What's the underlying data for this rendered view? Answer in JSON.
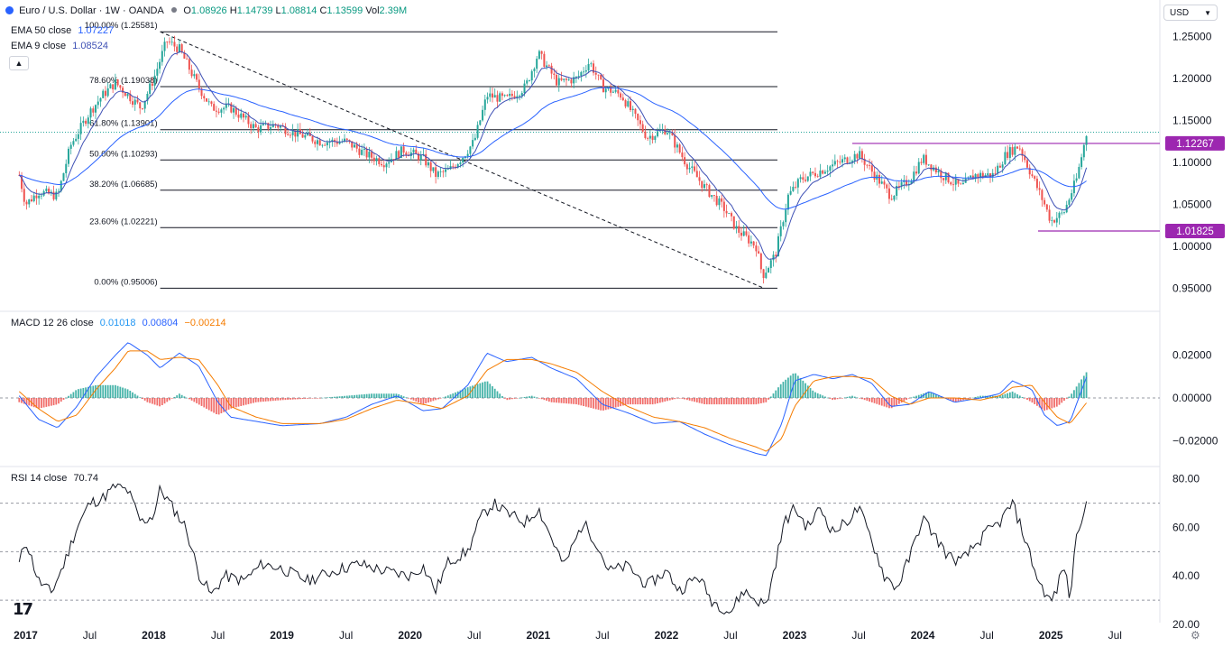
{
  "header": {
    "title": "Euro / U.S. Dollar · 1W · OANDA",
    "ohlc": [
      {
        "label": "O",
        "value": "1.08926"
      },
      {
        "label": "H",
        "value": "1.14739"
      },
      {
        "label": "L",
        "value": "1.08814"
      },
      {
        "label": "C",
        "value": "1.13599"
      }
    ],
    "vol_label": "Vol",
    "vol_value": "2.39M",
    "ema50_label": "EMA 50 close",
    "ema50_value": "1.07227",
    "ema9_label": "EMA 9 close",
    "ema9_value": "1.08524",
    "currency": "USD",
    "collapse_icon": "chevron-up-icon"
  },
  "colors": {
    "up": "#26a69a",
    "down": "#ef5350",
    "ema9": "#3f51b5",
    "ema50": "#2962ff",
    "macd": "#2962ff",
    "signal": "#f57c00",
    "rsi": "#131722",
    "level": "#9c27b0",
    "grid": "#9598a1"
  },
  "chart_data": [
    {
      "type": "candlestick",
      "title": "Euro / U.S. Dollar · 1W · OANDA",
      "x_ticks": [
        "2017",
        "Jul",
        "2018",
        "Jul",
        "2019",
        "Jul",
        "2020",
        "Jul",
        "2021",
        "Jul",
        "2022",
        "Jul",
        "2023",
        "Jul",
        "2024",
        "Jul",
        "2025",
        "Jul"
      ],
      "y_ticks": [
        "1.25000",
        "1.20000",
        "1.15000",
        "1.10000",
        "1.05000",
        "1.00000",
        "0.95000"
      ],
      "ylim": [
        0.93,
        1.27
      ],
      "price_path": [
        [
          2016.95,
          1.085
        ],
        [
          2017.0,
          1.05
        ],
        [
          2017.1,
          1.065
        ],
        [
          2017.25,
          1.06
        ],
        [
          2017.35,
          1.12
        ],
        [
          2017.5,
          1.16
        ],
        [
          2017.6,
          1.18
        ],
        [
          2017.7,
          1.195
        ],
        [
          2017.8,
          1.18
        ],
        [
          2017.9,
          1.165
        ],
        [
          2018.0,
          1.2
        ],
        [
          2018.1,
          1.245
        ],
        [
          2018.2,
          1.235
        ],
        [
          2018.35,
          1.19
        ],
        [
          2018.45,
          1.165
        ],
        [
          2018.6,
          1.165
        ],
        [
          2018.8,
          1.14
        ],
        [
          2018.95,
          1.145
        ],
        [
          2019.1,
          1.135
        ],
        [
          2019.3,
          1.125
        ],
        [
          2019.5,
          1.125
        ],
        [
          2019.65,
          1.11
        ],
        [
          2019.8,
          1.1
        ],
        [
          2019.95,
          1.115
        ],
        [
          2020.1,
          1.105
        ],
        [
          2020.2,
          1.085
        ],
        [
          2020.3,
          1.09
        ],
        [
          2020.4,
          1.105
        ],
        [
          2020.5,
          1.125
        ],
        [
          2020.6,
          1.18
        ],
        [
          2020.75,
          1.175
        ],
        [
          2020.9,
          1.19
        ],
        [
          2021.0,
          1.23
        ],
        [
          2021.15,
          1.195
        ],
        [
          2021.3,
          1.2
        ],
        [
          2021.4,
          1.22
        ],
        [
          2021.5,
          1.19
        ],
        [
          2021.65,
          1.18
        ],
        [
          2021.85,
          1.13
        ],
        [
          2022.0,
          1.14
        ],
        [
          2022.15,
          1.1
        ],
        [
          2022.3,
          1.07
        ],
        [
          2022.45,
          1.045
        ],
        [
          2022.55,
          1.02
        ],
        [
          2022.7,
          1.0
        ],
        [
          2022.75,
          0.965
        ],
        [
          2022.85,
          0.99
        ],
        [
          2022.95,
          1.06
        ],
        [
          2023.05,
          1.08
        ],
        [
          2023.2,
          1.09
        ],
        [
          2023.35,
          1.1
        ],
        [
          2023.5,
          1.11
        ],
        [
          2023.6,
          1.09
        ],
        [
          2023.75,
          1.06
        ],
        [
          2023.9,
          1.08
        ],
        [
          2024.0,
          1.105
        ],
        [
          2024.15,
          1.085
        ],
        [
          2024.3,
          1.07
        ],
        [
          2024.4,
          1.085
        ],
        [
          2024.55,
          1.085
        ],
        [
          2024.65,
          1.11
        ],
        [
          2024.75,
          1.12
        ],
        [
          2024.85,
          1.085
        ],
        [
          2024.95,
          1.05
        ],
        [
          2025.0,
          1.03
        ],
        [
          2025.1,
          1.04
        ],
        [
          2025.2,
          1.08
        ],
        [
          2025.28,
          1.136
        ]
      ],
      "fib_levels": [
        {
          "label": "100.00% (1.25581)",
          "value": 1.25581
        },
        {
          "label": "78.60% (1.19038)",
          "value": 1.19038
        },
        {
          "label": "61.80% (1.13901)",
          "value": 1.13901
        },
        {
          "label": "50.00% (1.10293)",
          "value": 1.10293
        },
        {
          "label": "38.20% (1.06685)",
          "value": 1.06685
        },
        {
          "label": "23.60% (1.02221)",
          "value": 1.02221
        },
        {
          "label": "0.00% (0.95006)",
          "value": 0.95006
        }
      ],
      "horizontal_levels": [
        {
          "label": "1.12267",
          "value": 1.12267
        },
        {
          "label": "1.01825",
          "value": 1.01825
        }
      ],
      "trendline": [
        [
          2018.05,
          1.2558
        ],
        [
          2022.76,
          0.9501
        ]
      ]
    },
    {
      "type": "line",
      "title": "MACD 12 26 close",
      "values_label": [
        "0.01018",
        "0.00804",
        "−0.00214"
      ],
      "y_ticks": [
        "0.02000",
        "0.00000",
        "−0.02000"
      ],
      "ylim": [
        -0.03,
        0.03
      ],
      "macd_path": [
        [
          2016.95,
          0.001
        ],
        [
          2017.1,
          -0.01
        ],
        [
          2017.25,
          -0.014
        ],
        [
          2017.4,
          -0.004
        ],
        [
          2017.55,
          0.01
        ],
        [
          2017.7,
          0.02
        ],
        [
          2017.8,
          0.026
        ],
        [
          2017.95,
          0.02
        ],
        [
          2018.05,
          0.014
        ],
        [
          2018.2,
          0.021
        ],
        [
          2018.35,
          0.015
        ],
        [
          2018.5,
          -0.002
        ],
        [
          2018.6,
          -0.009
        ],
        [
          2018.8,
          -0.011
        ],
        [
          2019.0,
          -0.013
        ],
        [
          2019.3,
          -0.012
        ],
        [
          2019.5,
          -0.009
        ],
        [
          2019.7,
          -0.003
        ],
        [
          2019.9,
          0.001
        ],
        [
          2020.1,
          -0.006
        ],
        [
          2020.25,
          -0.005
        ],
        [
          2020.45,
          0.006
        ],
        [
          2020.6,
          0.021
        ],
        [
          2020.75,
          0.017
        ],
        [
          2020.95,
          0.019
        ],
        [
          2021.1,
          0.014
        ],
        [
          2021.3,
          0.009
        ],
        [
          2021.5,
          -0.003
        ],
        [
          2021.7,
          -0.007
        ],
        [
          2021.9,
          -0.012
        ],
        [
          2022.1,
          -0.011
        ],
        [
          2022.3,
          -0.017
        ],
        [
          2022.5,
          -0.022
        ],
        [
          2022.7,
          -0.026
        ],
        [
          2022.78,
          -0.027
        ],
        [
          2022.9,
          -0.012
        ],
        [
          2023.0,
          0.008
        ],
        [
          2023.15,
          0.011
        ],
        [
          2023.3,
          0.009
        ],
        [
          2023.45,
          0.011
        ],
        [
          2023.6,
          0.007
        ],
        [
          2023.75,
          -0.004
        ],
        [
          2023.9,
          -0.003
        ],
        [
          2024.05,
          0.003
        ],
        [
          2024.25,
          -0.002
        ],
        [
          2024.45,
          0.0
        ],
        [
          2024.6,
          0.002
        ],
        [
          2024.7,
          0.008
        ],
        [
          2024.85,
          0.004
        ],
        [
          2024.95,
          -0.008
        ],
        [
          2025.05,
          -0.013
        ],
        [
          2025.15,
          -0.011
        ],
        [
          2025.28,
          0.0102
        ]
      ],
      "signal_path": [
        [
          2016.95,
          0.003
        ],
        [
          2017.1,
          -0.005
        ],
        [
          2017.25,
          -0.011
        ],
        [
          2017.4,
          -0.008
        ],
        [
          2017.55,
          0.004
        ],
        [
          2017.7,
          0.014
        ],
        [
          2017.8,
          0.022
        ],
        [
          2017.95,
          0.022
        ],
        [
          2018.05,
          0.018
        ],
        [
          2018.2,
          0.019
        ],
        [
          2018.35,
          0.018
        ],
        [
          2018.5,
          0.006
        ],
        [
          2018.6,
          -0.004
        ],
        [
          2018.8,
          -0.009
        ],
        [
          2019.0,
          -0.012
        ],
        [
          2019.3,
          -0.012
        ],
        [
          2019.5,
          -0.01
        ],
        [
          2019.7,
          -0.005
        ],
        [
          2019.9,
          -0.001
        ],
        [
          2020.1,
          -0.003
        ],
        [
          2020.25,
          -0.005
        ],
        [
          2020.45,
          0.001
        ],
        [
          2020.6,
          0.013
        ],
        [
          2020.75,
          0.018
        ],
        [
          2020.95,
          0.018
        ],
        [
          2021.1,
          0.016
        ],
        [
          2021.3,
          0.012
        ],
        [
          2021.5,
          0.003
        ],
        [
          2021.7,
          -0.004
        ],
        [
          2021.9,
          -0.009
        ],
        [
          2022.1,
          -0.011
        ],
        [
          2022.3,
          -0.014
        ],
        [
          2022.5,
          -0.019
        ],
        [
          2022.7,
          -0.023
        ],
        [
          2022.78,
          -0.025
        ],
        [
          2022.9,
          -0.019
        ],
        [
          2023.0,
          -0.004
        ],
        [
          2023.15,
          0.008
        ],
        [
          2023.3,
          0.01
        ],
        [
          2023.45,
          0.01
        ],
        [
          2023.6,
          0.009
        ],
        [
          2023.75,
          0.001
        ],
        [
          2023.9,
          -0.003
        ],
        [
          2024.05,
          0.0
        ],
        [
          2024.25,
          0.0
        ],
        [
          2024.45,
          -0.001
        ],
        [
          2024.6,
          0.001
        ],
        [
          2024.7,
          0.005
        ],
        [
          2024.85,
          0.006
        ],
        [
          2024.95,
          -0.002
        ],
        [
          2025.05,
          -0.009
        ],
        [
          2025.15,
          -0.012
        ],
        [
          2025.28,
          -0.0021
        ]
      ]
    },
    {
      "type": "line",
      "title": "RSI 14 close",
      "values_label": [
        "70.74"
      ],
      "y_ticks": [
        "80.00",
        "60.00",
        "40.00",
        "20.00"
      ],
      "ylim": [
        17,
        84
      ],
      "bands": [
        70,
        50,
        30
      ],
      "rsi_path": [
        [
          2016.95,
          45
        ],
        [
          2017.0,
          55
        ],
        [
          2017.1,
          38
        ],
        [
          2017.2,
          33
        ],
        [
          2017.3,
          45
        ],
        [
          2017.4,
          60
        ],
        [
          2017.5,
          70
        ],
        [
          2017.6,
          72
        ],
        [
          2017.7,
          77
        ],
        [
          2017.8,
          75
        ],
        [
          2017.9,
          62
        ],
        [
          2018.0,
          65
        ],
        [
          2018.05,
          76
        ],
        [
          2018.15,
          68
        ],
        [
          2018.25,
          60
        ],
        [
          2018.35,
          41
        ],
        [
          2018.45,
          32
        ],
        [
          2018.55,
          40
        ],
        [
          2018.7,
          38
        ],
        [
          2018.85,
          45
        ],
        [
          2019.0,
          43
        ],
        [
          2019.2,
          38
        ],
        [
          2019.4,
          42
        ],
        [
          2019.6,
          45
        ],
        [
          2019.8,
          42
        ],
        [
          2020.0,
          40
        ],
        [
          2020.1,
          44
        ],
        [
          2020.2,
          34
        ],
        [
          2020.3,
          46
        ],
        [
          2020.45,
          50
        ],
        [
          2020.55,
          64
        ],
        [
          2020.65,
          70
        ],
        [
          2020.75,
          66
        ],
        [
          2020.9,
          62
        ],
        [
          2021.0,
          68
        ],
        [
          2021.1,
          56
        ],
        [
          2021.2,
          44
        ],
        [
          2021.35,
          62
        ],
        [
          2021.45,
          54
        ],
        [
          2021.55,
          42
        ],
        [
          2021.7,
          44
        ],
        [
          2021.85,
          36
        ],
        [
          2022.0,
          42
        ],
        [
          2022.1,
          34
        ],
        [
          2022.25,
          40
        ],
        [
          2022.35,
          30
        ],
        [
          2022.5,
          25
        ],
        [
          2022.6,
          34
        ],
        [
          2022.7,
          30
        ],
        [
          2022.78,
          28
        ],
        [
          2022.85,
          45
        ],
        [
          2022.92,
          62
        ],
        [
          2023.0,
          68
        ],
        [
          2023.1,
          60
        ],
        [
          2023.2,
          68
        ],
        [
          2023.3,
          58
        ],
        [
          2023.4,
          62
        ],
        [
          2023.5,
          68
        ],
        [
          2023.6,
          55
        ],
        [
          2023.7,
          40
        ],
        [
          2023.8,
          35
        ],
        [
          2023.9,
          48
        ],
        [
          2024.0,
          64
        ],
        [
          2024.1,
          56
        ],
        [
          2024.2,
          48
        ],
        [
          2024.3,
          46
        ],
        [
          2024.4,
          52
        ],
        [
          2024.5,
          58
        ],
        [
          2024.6,
          62
        ],
        [
          2024.7,
          70
        ],
        [
          2024.8,
          55
        ],
        [
          2024.9,
          38
        ],
        [
          2025.0,
          29
        ],
        [
          2025.05,
          35
        ],
        [
          2025.1,
          45
        ],
        [
          2025.15,
          30
        ],
        [
          2025.2,
          58
        ],
        [
          2025.28,
          70.74
        ]
      ]
    }
  ]
}
